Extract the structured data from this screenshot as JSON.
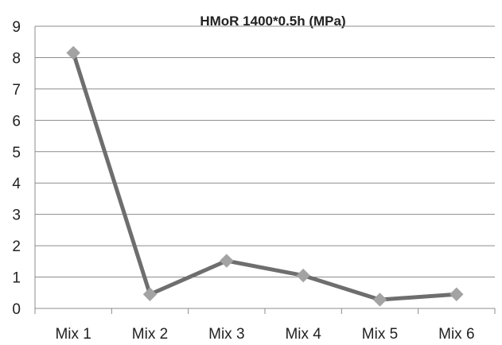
{
  "chart_data": {
    "type": "line",
    "title": "HMoR 1400*0.5h (MPa)",
    "xlabel": "",
    "ylabel": "",
    "categories": [
      "Mix 1",
      "Mix 2",
      "Mix 3",
      "Mix 4",
      "Mix 5",
      "Mix 6"
    ],
    "series": [
      {
        "values": [
          8.15,
          0.45,
          1.52,
          1.05,
          0.28,
          0.45
        ],
        "color": "#6e6e6e",
        "marker": "diamond",
        "marker_color": "#a3a3a3"
      }
    ],
    "ylim": [
      0,
      9
    ],
    "yticks": [
      0,
      1,
      2,
      3,
      4,
      5,
      6,
      7,
      8,
      9
    ],
    "grid": true,
    "legend": "none"
  }
}
